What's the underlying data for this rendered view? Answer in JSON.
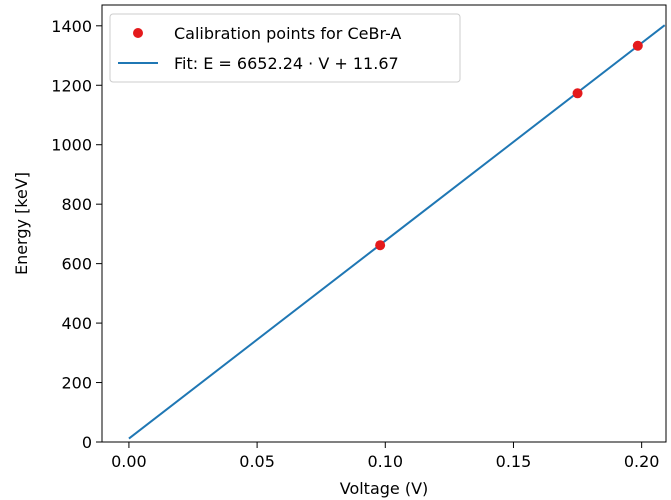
{
  "chart_data": {
    "type": "scatter",
    "xlabel": "Voltage (V)",
    "ylabel": "Energy [keV]",
    "xlim": [
      -0.0105,
      0.2095
    ],
    "ylim": [
      0,
      1470
    ],
    "xticks": [
      0.0,
      0.05,
      0.1,
      0.15,
      0.2
    ],
    "xtick_labels": [
      "0.00",
      "0.05",
      "0.10",
      "0.15",
      "0.20"
    ],
    "yticks": [
      0,
      200,
      400,
      600,
      800,
      1000,
      1200,
      1400
    ],
    "ytick_labels": [
      "0",
      "200",
      "400",
      "600",
      "800",
      "1000",
      "1200",
      "1400"
    ],
    "grid": false,
    "legend_position": "top-left",
    "series": [
      {
        "name": "Calibration points for CeBr-A",
        "kind": "scatter",
        "color": "#e41a1c",
        "x": [
          0.098,
          0.175,
          0.1985
        ],
        "y": [
          662,
          1173,
          1333
        ]
      },
      {
        "name": "Fit: E = 6652.24 · V + 11.67",
        "kind": "line",
        "color": "#1f77b4",
        "x": [
          0.0,
          0.209
        ],
        "y": [
          11.67,
          1402.0
        ]
      }
    ]
  }
}
